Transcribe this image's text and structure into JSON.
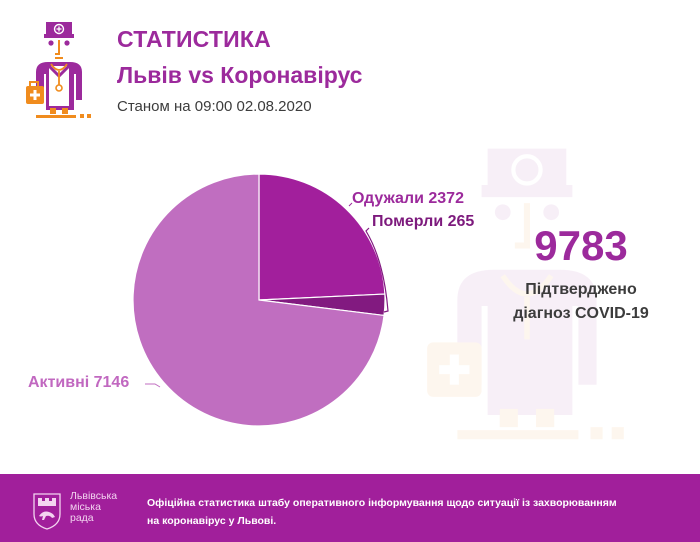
{
  "header": {
    "title": "СТАТИСТИКА",
    "subtitle": "Львів vs Коронавірус",
    "date": "Станом на 09:00 02.08.2020",
    "logo_icon": "doctor-with-medkit-icon"
  },
  "summary": {
    "total": "9783",
    "caption_line1": "Підтверджено",
    "caption_line2": "діагноз COVID-19"
  },
  "labels": {
    "recovered": "Одужали 2372",
    "died": "Померли 265",
    "active": "Активні 7146"
  },
  "footer": {
    "council_line1": "Львівська",
    "council_line2": "міська",
    "council_line3": "рада",
    "text": "Офіційна статистика штабу оперативного інформування щодо ситуації із захворюванням на коронавірус у Львові."
  },
  "colors": {
    "brand_purple": "#9c2a9c",
    "recovered": "#a21f9c",
    "died": "#821a80",
    "active": "#c06ec0",
    "footer_bg": "#a11f9b",
    "accent_orange": "#f08c1e"
  },
  "chart_data": {
    "type": "pie",
    "title": "Львів vs Коронавірус",
    "subtitle": "Станом на 09:00 02.08.2020",
    "categories": [
      "Одужали",
      "Померли",
      "Активні"
    ],
    "values": [
      2372,
      265,
      7146
    ],
    "total": 9783,
    "total_label": "Підтверджено діагноз COVID-19",
    "start_angle": "12 o'clock, clockwise",
    "legend": "none (inline labels with leader lines)",
    "colors": [
      "#a21f9c",
      "#821a80",
      "#c06ec0"
    ]
  }
}
